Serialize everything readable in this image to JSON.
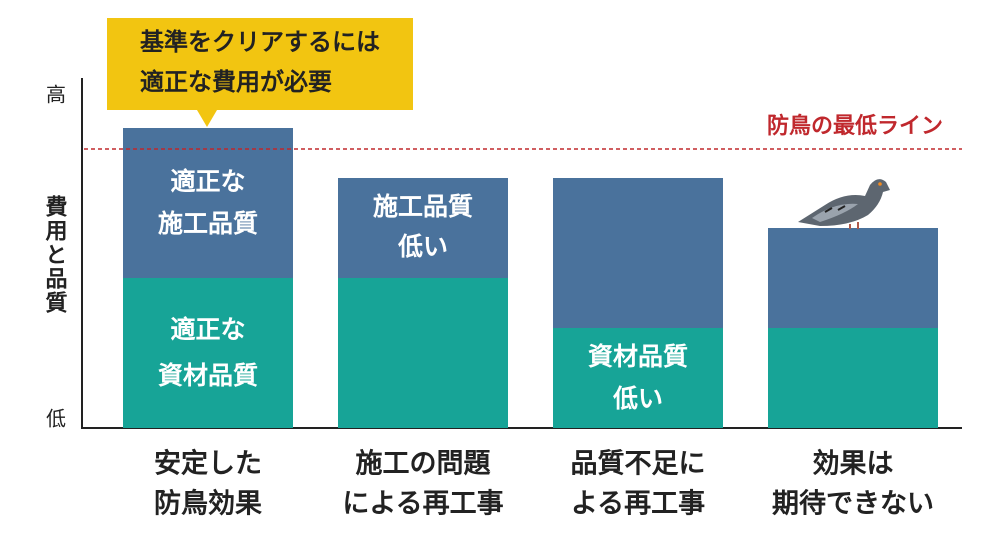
{
  "callout": {
    "lines": [
      "基準をクリアするには",
      "適正な費用が必要"
    ]
  },
  "axis": {
    "label": "費用と品質",
    "high": "高",
    "low": "低"
  },
  "threshold": {
    "label": "防鳥の最低ライン"
  },
  "columns": [
    {
      "top": [
        "適正な",
        "施工品質"
      ],
      "bottom": [
        "適正な",
        "資材品質"
      ],
      "caption": [
        "安定した",
        "防鳥効果"
      ]
    },
    {
      "top": [
        "施工品質",
        "低い"
      ],
      "caption": [
        "施工の問題",
        "による再工事"
      ]
    },
    {
      "bottom": [
        "資材品質",
        "低い"
      ],
      "caption": [
        "品質不足に",
        "よる再工事"
      ]
    },
    {
      "caption": [
        "効果は",
        "期待できない"
      ]
    }
  ]
}
